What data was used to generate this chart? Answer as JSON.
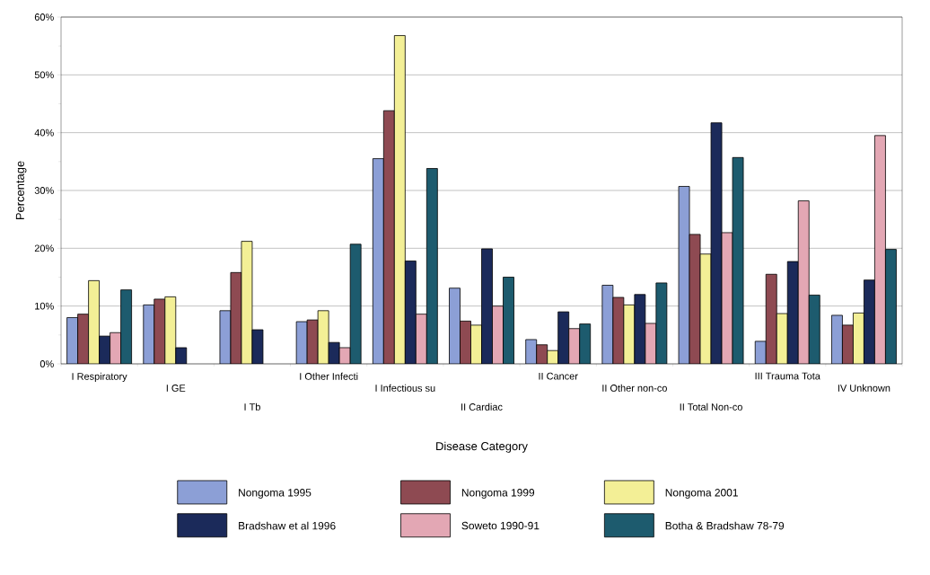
{
  "chart_data": {
    "type": "bar",
    "xlabel": "Disease Category",
    "ylabel": "Percentage",
    "categories": [
      "I Respiratory",
      "I GE",
      "I Tb",
      "I Other Infecti",
      "I Infectious su",
      "II Cardiac",
      "II Cancer",
      "II Other non-co",
      "II Total Non-co",
      "III Trauma Tota",
      "IV Unknown"
    ],
    "series": [
      {
        "name": "Nongoma 1995",
        "color": "#8c9fd6",
        "values": [
          8.0,
          10.2,
          9.2,
          7.3,
          35.5,
          13.1,
          4.2,
          13.6,
          30.7,
          3.9,
          8.4
        ]
      },
      {
        "name": "Nongoma 1999",
        "color": "#8e4a52",
        "values": [
          8.6,
          11.2,
          15.8,
          7.6,
          43.8,
          7.4,
          3.3,
          11.5,
          22.4,
          15.5,
          6.7
        ]
      },
      {
        "name": "Nongoma 2001",
        "color": "#f3ef96",
        "values": [
          14.4,
          11.6,
          21.2,
          9.2,
          56.8,
          6.7,
          2.3,
          10.2,
          19.0,
          8.7,
          8.8
        ]
      },
      {
        "name": "Bradshaw et al 1996",
        "color": "#1b2a5a",
        "values": [
          4.8,
          2.8,
          5.9,
          3.7,
          17.8,
          19.9,
          9.0,
          12.0,
          41.7,
          17.7,
          14.5
        ]
      },
      {
        "name": "Soweto 1990-91",
        "color": "#e3a7b4",
        "values": [
          5.4,
          null,
          null,
          2.8,
          8.6,
          10.0,
          6.1,
          7.0,
          22.7,
          28.2,
          39.5
        ]
      },
      {
        "name": "Botha & Bradshaw 78-79",
        "color": "#1d5b6e",
        "values": [
          12.8,
          null,
          null,
          20.7,
          33.8,
          15.0,
          6.9,
          14.0,
          35.7,
          11.9,
          19.8
        ]
      }
    ],
    "ylim": [
      0,
      60
    ],
    "yticks": [
      {
        "value": 0,
        "label": "0%"
      },
      {
        "value": 10,
        "label": "10%"
      },
      {
        "value": 20,
        "label": "20%"
      },
      {
        "value": 30,
        "label": "30%"
      },
      {
        "value": 40,
        "label": "40%"
      },
      {
        "value": 50,
        "label": "50%"
      },
      {
        "value": 60,
        "label": "60%"
      }
    ],
    "grid": "y",
    "legend": "bottom"
  }
}
